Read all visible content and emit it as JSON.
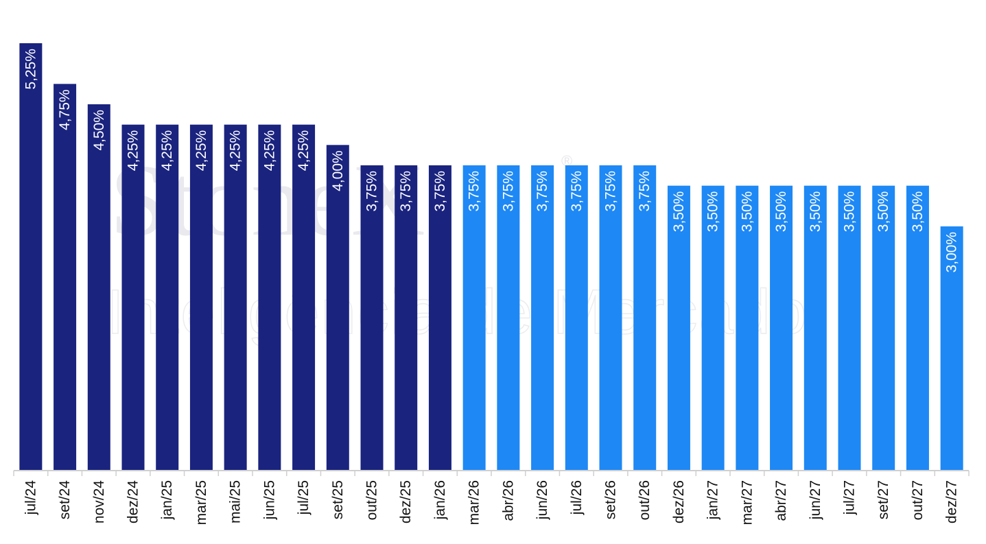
{
  "watermark": {
    "logo_text": "StoneX",
    "registered_mark": "®",
    "tagline": "Inteligência de Mercado"
  },
  "colors": {
    "historical": "#1a237e",
    "projection": "#1e88f5",
    "axis": "#cfcfcf",
    "bar_label": "#ffffff",
    "tick_label": "#111111"
  },
  "chart_data": {
    "type": "bar",
    "categories": [
      "jul/24",
      "set/24",
      "nov/24",
      "dez/24",
      "jan/25",
      "mar/25",
      "mai/25",
      "jun/25",
      "jul/25",
      "set/25",
      "out/25",
      "dez/25",
      "jan/26",
      "mar/26",
      "abr/26",
      "jun/26",
      "jul/26",
      "set/26",
      "out/26",
      "dez/26",
      "jan/27",
      "mar/27",
      "abr/27",
      "jun/27",
      "jul/27",
      "set/27",
      "out/27",
      "dez/27"
    ],
    "values": [
      5.25,
      4.75,
      4.5,
      4.25,
      4.25,
      4.25,
      4.25,
      4.25,
      4.25,
      4.0,
      3.75,
      3.75,
      3.75,
      3.75,
      3.75,
      3.75,
      3.75,
      3.75,
      3.75,
      3.5,
      3.5,
      3.5,
      3.5,
      3.5,
      3.5,
      3.5,
      3.5,
      3.0
    ],
    "data_labels": [
      "5,25%",
      "4,75%",
      "4,50%",
      "4,25%",
      "4,25%",
      "4,25%",
      "4,25%",
      "4,25%",
      "4,25%",
      "4,00%",
      "3,75%",
      "3,75%",
      "3,75%",
      "3,75%",
      "3,75%",
      "3,75%",
      "3,75%",
      "3,75%",
      "3,75%",
      "3,50%",
      "3,50%",
      "3,50%",
      "3,50%",
      "3,50%",
      "3,50%",
      "3,50%",
      "3,50%",
      "3,00%"
    ],
    "bar_group": [
      "historical",
      "historical",
      "historical",
      "historical",
      "historical",
      "historical",
      "historical",
      "historical",
      "historical",
      "historical",
      "historical",
      "historical",
      "historical",
      "projection",
      "projection",
      "projection",
      "projection",
      "projection",
      "projection",
      "projection",
      "projection",
      "projection",
      "projection",
      "projection",
      "projection",
      "projection",
      "projection",
      "projection"
    ],
    "title": "",
    "xlabel": "",
    "ylabel": "",
    "ylim": [
      0,
      5.25
    ],
    "grid": false,
    "legend": "none",
    "label_orientation": "vertical"
  }
}
